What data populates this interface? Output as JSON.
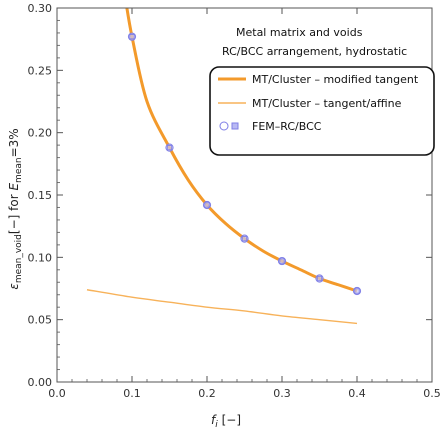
{
  "chart_data": {
    "type": "line",
    "xlabel": "f",
    "xlabel_sub": "i",
    "xlabel_unit": "[−]",
    "ylabel_main": "ε",
    "ylabel_sub1": "mean_void",
    "ylabel_mid": "[−] for ",
    "ylabel_E": "E",
    "ylabel_sub2": "mean",
    "ylabel_end": "=3%",
    "xlim": [
      0.0,
      0.5
    ],
    "ylim": [
      0.0,
      0.3
    ],
    "x_ticks": [
      "0.0",
      "0.1",
      "0.2",
      "0.3",
      "0.4",
      "0.5"
    ],
    "y_ticks": [
      "0.00",
      "0.05",
      "0.10",
      "0.15",
      "0.20",
      "0.25",
      "0.30"
    ],
    "annotations": [
      "Metal matrix and voids",
      "RC/BCC arrangement, hydrostatic"
    ],
    "legend_position": "top-right",
    "colors": {
      "orange": "#f39a2b",
      "light_orange": "#f7b25a",
      "marker": "#7f7fe6"
    },
    "series": [
      {
        "name": "MT/Cluster – modified tangent",
        "style": "thick-line",
        "x": [
          0.085,
          0.09,
          0.1,
          0.12,
          0.15,
          0.175,
          0.2,
          0.225,
          0.25,
          0.275,
          0.3,
          0.325,
          0.35,
          0.375,
          0.4
        ],
        "y": [
          0.33,
          0.312,
          0.277,
          0.225,
          0.188,
          0.162,
          0.142,
          0.127,
          0.115,
          0.105,
          0.097,
          0.09,
          0.083,
          0.078,
          0.073
        ]
      },
      {
        "name": "MT/Cluster – tangent/affine",
        "style": "thin-line",
        "x": [
          0.04,
          0.1,
          0.15,
          0.2,
          0.25,
          0.3,
          0.35,
          0.4
        ],
        "y": [
          0.074,
          0.068,
          0.064,
          0.06,
          0.057,
          0.053,
          0.05,
          0.047
        ]
      },
      {
        "name": "FEM–RC/BCC",
        "style": "markers",
        "x": [
          0.1,
          0.15,
          0.2,
          0.25,
          0.3,
          0.35,
          0.4
        ],
        "y": [
          0.277,
          0.188,
          0.142,
          0.115,
          0.097,
          0.083,
          0.073
        ]
      }
    ]
  }
}
